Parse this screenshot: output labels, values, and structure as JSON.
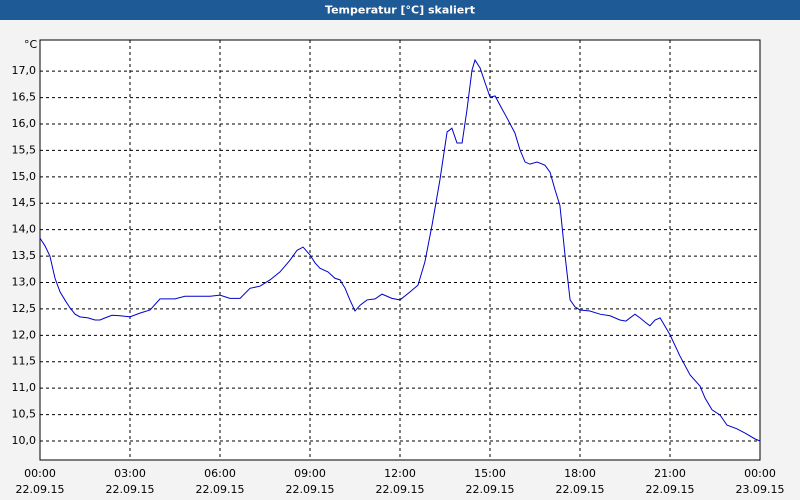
{
  "chart_data": {
    "type": "line",
    "title": "Temperatur [°C] skaliert",
    "y_unit": "°C",
    "x": [
      0,
      0.17,
      0.33,
      0.5,
      0.67,
      0.83,
      1,
      1.17,
      1.33,
      1.6,
      1.83,
      2,
      2.17,
      2.4,
      2.67,
      3,
      3.33,
      3.67,
      4,
      4.5,
      4.83,
      5.33,
      5.67,
      6,
      6.33,
      6.67,
      7,
      7.33,
      7.67,
      8,
      8.33,
      8.57,
      8.77,
      9,
      9.17,
      9.33,
      9.6,
      9.83,
      10,
      10.17,
      10.33,
      10.5,
      10.67,
      10.9,
      11.17,
      11.4,
      11.73,
      12,
      12.33,
      12.6,
      12.83,
      13.07,
      13.33,
      13.57,
      13.73,
      13.9,
      14.07,
      14.23,
      14.4,
      14.5,
      14.67,
      14.83,
      15,
      15.17,
      15.33,
      15.57,
      15.83,
      16,
      16.17,
      16.33,
      16.57,
      16.83,
      17,
      17.17,
      17.33,
      17.5,
      17.67,
      17.83,
      18,
      18.33,
      18.67,
      19,
      19.33,
      19.53,
      19.83,
      20,
      20.17,
      20.33,
      20.5,
      20.67,
      21,
      21.33,
      21.67,
      22,
      22.17,
      22.4,
      22.67,
      22.9,
      23.23,
      23.5,
      23.83,
      24
    ],
    "series": [
      {
        "color": "#0000cc",
        "values": [
          13.84,
          13.69,
          13.5,
          13.08,
          12.82,
          12.67,
          12.52,
          12.4,
          12.35,
          12.33,
          12.29,
          12.29,
          12.33,
          12.38,
          12.37,
          12.35,
          12.42,
          12.48,
          12.69,
          12.69,
          12.74,
          12.74,
          12.74,
          12.76,
          12.7,
          12.7,
          12.89,
          12.93,
          13.05,
          13.2,
          13.42,
          13.61,
          13.67,
          13.52,
          13.37,
          13.27,
          13.2,
          13.08,
          13.05,
          12.89,
          12.67,
          12.46,
          12.57,
          12.67,
          12.69,
          12.78,
          12.7,
          12.67,
          12.82,
          12.95,
          13.39,
          14.09,
          14.94,
          15.85,
          15.92,
          15.64,
          15.64,
          16.26,
          17.02,
          17.21,
          17.06,
          16.79,
          16.51,
          16.53,
          16.36,
          16.11,
          15.83,
          15.51,
          15.28,
          15.24,
          15.28,
          15.22,
          15.09,
          14.75,
          14.46,
          13.52,
          12.67,
          12.54,
          12.48,
          12.46,
          12.4,
          12.37,
          12.29,
          12.27,
          12.4,
          12.33,
          12.25,
          12.18,
          12.29,
          12.33,
          12.01,
          11.61,
          11.25,
          11.04,
          10.81,
          10.59,
          10.49,
          10.3,
          10.23,
          10.15,
          10.04,
          10.0
        ]
      }
    ],
    "xlim": [
      0,
      24
    ],
    "xticks": [
      {
        "value": 0,
        "label": "00:00",
        "date": "22.09.15"
      },
      {
        "value": 3,
        "label": "03:00",
        "date": "22.09.15"
      },
      {
        "value": 6,
        "label": "06:00",
        "date": "22.09.15"
      },
      {
        "value": 9,
        "label": "09:00",
        "date": "22.09.15"
      },
      {
        "value": 12,
        "label": "12:00",
        "date": "22.09.15"
      },
      {
        "value": 15,
        "label": "15:00",
        "date": "22.09.15"
      },
      {
        "value": 18,
        "label": "18:00",
        "date": "22.09.15"
      },
      {
        "value": 21,
        "label": "21:00",
        "date": "22.09.15"
      },
      {
        "value": 24,
        "label": "00:00",
        "date": "23.09.15"
      }
    ],
    "ylim": [
      9.64,
      17.59
    ],
    "yticks": [
      {
        "value": 10,
        "label": "10,0"
      },
      {
        "value": 10.5,
        "label": "10,5"
      },
      {
        "value": 11,
        "label": "11,0"
      },
      {
        "value": 11.5,
        "label": "11,5"
      },
      {
        "value": 12,
        "label": "12,0"
      },
      {
        "value": 12.5,
        "label": "12,5"
      },
      {
        "value": 13,
        "label": "13,0"
      },
      {
        "value": 13.5,
        "label": "13,5"
      },
      {
        "value": 14,
        "label": "14,0"
      },
      {
        "value": 14.5,
        "label": "14,5"
      },
      {
        "value": 15,
        "label": "15,0"
      },
      {
        "value": 15.5,
        "label": "15,5"
      },
      {
        "value": 16,
        "label": "16,0"
      },
      {
        "value": 16.5,
        "label": "16,5"
      },
      {
        "value": 17,
        "label": "17,0"
      }
    ],
    "grid": true
  }
}
